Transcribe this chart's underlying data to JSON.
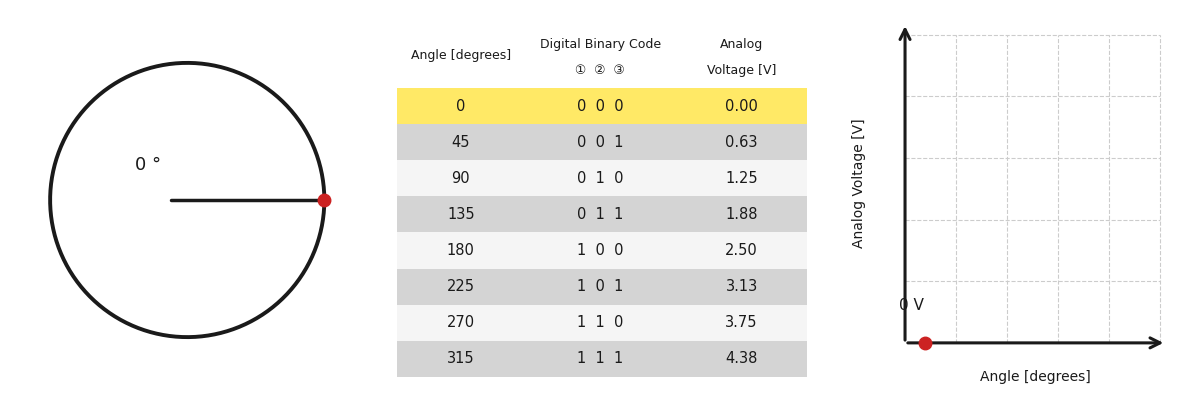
{
  "table_col1": [
    0,
    45,
    90,
    135,
    180,
    225,
    270,
    315
  ],
  "table_col2": [
    "0  0  0",
    "0  0  1",
    "0  1  0",
    "0  1  1",
    "1  0  0",
    "1  0  1",
    "1  1  0",
    "1  1  1"
  ],
  "table_col3": [
    "0.00",
    "0.63",
    "1.25",
    "1.88",
    "2.50",
    "3.13",
    "3.75",
    "4.38"
  ],
  "row_colors_even": "#d4d4d4",
  "row_colors_odd": "#f5f5f5",
  "highlight_row_color": "#ffe966",
  "circle_color": "#1a1a1a",
  "dot_color": "#cc2222",
  "ylabel_graph": "Analog Voltage [V]",
  "xlabel_graph": "Angle [degrees]",
  "label_0v": "0 V",
  "angle_label": "0 °",
  "header_col1": "Angle [degrees]",
  "header_col2_line1": "Digital Binary Code",
  "header_col2_line2": "①  ②  ③",
  "header_col3_line1": "Analog",
  "header_col3_line2": "Voltage [V]"
}
